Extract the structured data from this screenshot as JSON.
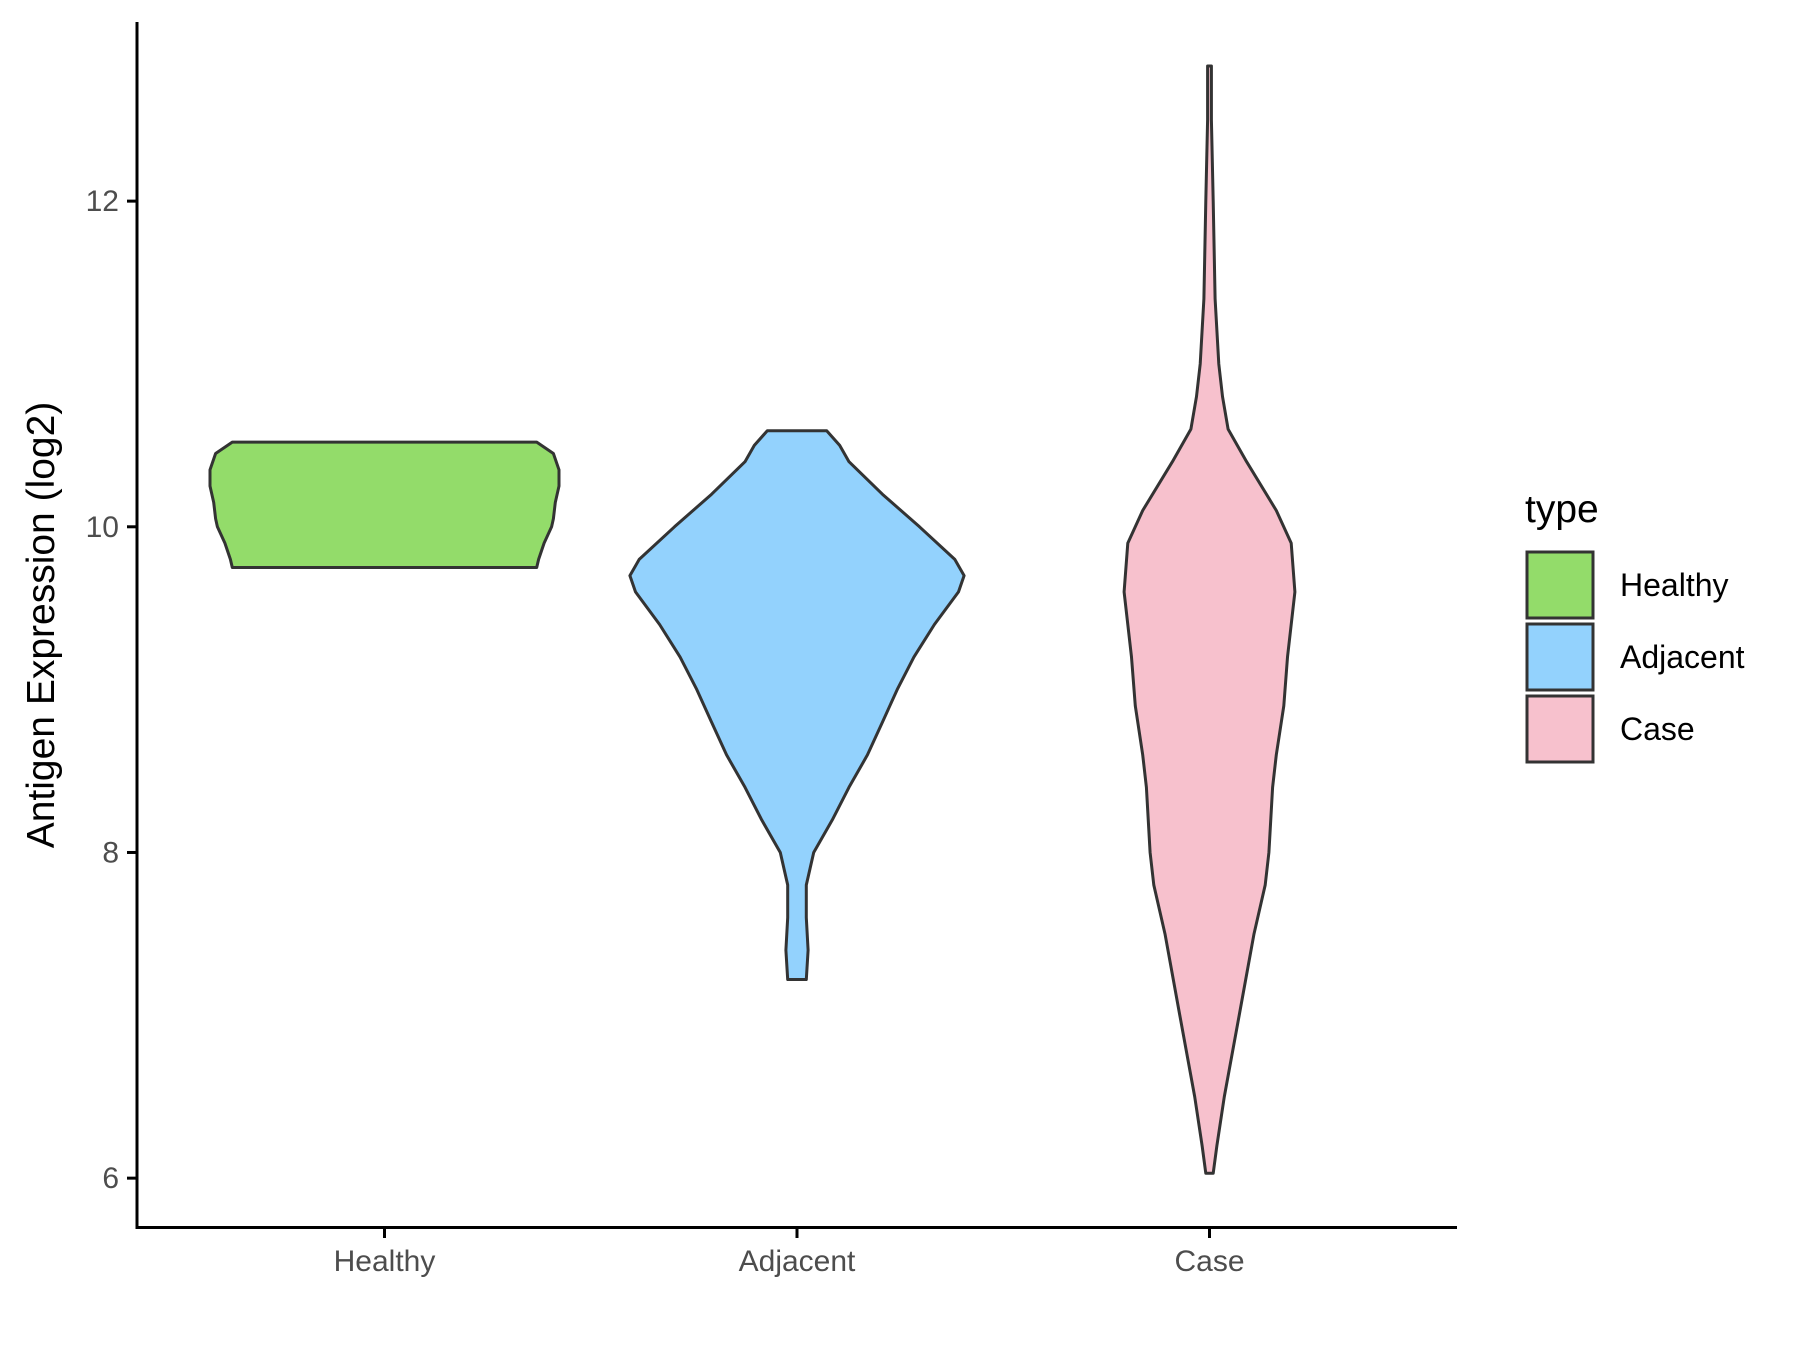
{
  "chart_data": {
    "type": "violin",
    "title": "",
    "xlabel": "",
    "ylabel": "Antigen Expression (log2)",
    "ylim": [
      5.7,
      13.1
    ],
    "y_ticks": [
      6,
      8,
      10,
      12
    ],
    "categories": [
      "Healthy",
      "Adjacent",
      "Case"
    ],
    "grid": false,
    "legend": {
      "title": "type",
      "position": "right",
      "items": [
        {
          "label": "Healthy",
          "color": "#93DC6A"
        },
        {
          "label": "Adjacent",
          "color": "#93D2FD"
        },
        {
          "label": "Case",
          "color": "#F7C1CD"
        }
      ]
    },
    "series": [
      {
        "category": "Healthy",
        "color": "#93DC6A",
        "min": 9.75,
        "max": 10.52,
        "profile": [
          [
            9.75,
            0.82
          ],
          [
            9.8,
            0.83
          ],
          [
            9.9,
            0.86
          ],
          [
            10.0,
            0.9
          ],
          [
            10.05,
            0.91
          ],
          [
            10.15,
            0.92
          ],
          [
            10.25,
            0.94
          ],
          [
            10.35,
            0.94
          ],
          [
            10.45,
            0.91
          ],
          [
            10.52,
            0.82
          ]
        ]
      },
      {
        "category": "Adjacent",
        "color": "#93D2FD",
        "min": 7.22,
        "max": 10.59,
        "profile": [
          [
            7.22,
            0.05
          ],
          [
            7.4,
            0.06
          ],
          [
            7.6,
            0.05
          ],
          [
            7.8,
            0.05
          ],
          [
            8.0,
            0.09
          ],
          [
            8.2,
            0.19
          ],
          [
            8.4,
            0.28
          ],
          [
            8.6,
            0.38
          ],
          [
            8.8,
            0.46
          ],
          [
            9.0,
            0.54
          ],
          [
            9.2,
            0.63
          ],
          [
            9.4,
            0.74
          ],
          [
            9.6,
            0.87
          ],
          [
            9.7,
            0.9
          ],
          [
            9.8,
            0.85
          ],
          [
            10.0,
            0.66
          ],
          [
            10.2,
            0.46
          ],
          [
            10.4,
            0.28
          ],
          [
            10.5,
            0.23
          ],
          [
            10.59,
            0.16
          ]
        ]
      },
      {
        "category": "Case",
        "color": "#F7C1CD",
        "min": 6.03,
        "max": 12.83,
        "profile": [
          [
            6.03,
            0.02
          ],
          [
            6.2,
            0.04
          ],
          [
            6.5,
            0.08
          ],
          [
            7.0,
            0.16
          ],
          [
            7.5,
            0.24
          ],
          [
            7.8,
            0.3
          ],
          [
            8.0,
            0.32
          ],
          [
            8.4,
            0.34
          ],
          [
            8.6,
            0.36
          ],
          [
            8.9,
            0.4
          ],
          [
            9.2,
            0.42
          ],
          [
            9.6,
            0.46
          ],
          [
            9.9,
            0.44
          ],
          [
            10.1,
            0.36
          ],
          [
            10.4,
            0.2
          ],
          [
            10.6,
            0.1
          ],
          [
            10.8,
            0.07
          ],
          [
            11.0,
            0.05
          ],
          [
            11.4,
            0.03
          ],
          [
            12.0,
            0.02
          ],
          [
            12.5,
            0.01
          ],
          [
            12.83,
            0.01
          ]
        ]
      }
    ]
  }
}
